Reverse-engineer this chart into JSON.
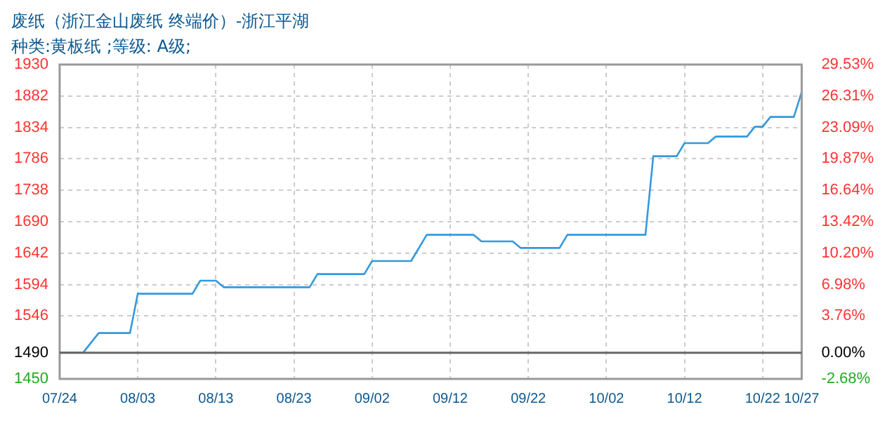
{
  "chart_data": {
    "type": "line",
    "title": "废纸（浙江金山废纸 终端价）-浙江平湖",
    "subtitle": "种类:黄板纸 ;等级: A级;",
    "x": [
      "--07-24",
      "--07-27",
      "--07-29",
      "--08-02",
      "--08-03",
      "--08-10",
      "--08-11",
      "--08-13",
      "--08-14",
      "--08-25",
      "--08-26",
      "--09-01",
      "--09-02",
      "--09-07",
      "--09-09",
      "--09-15",
      "--09-16",
      "--09-20",
      "--09-21",
      "--09-26",
      "--09-27",
      "--10-07",
      "--10-08",
      "--10-11",
      "--10-12",
      "--10-15",
      "--10-16",
      "--10-20",
      "--10-21",
      "--10-22",
      "--10-23",
      "--10-26",
      "--10-27"
    ],
    "series": [
      {
        "color": "#3399dd",
        "values": [
          1490,
          1490,
          1520,
          1520,
          1580,
          1580,
          1600,
          1600,
          1590,
          1590,
          1610,
          1610,
          1630,
          1630,
          1670,
          1670,
          1660,
          1660,
          1650,
          1650,
          1670,
          1670,
          1790,
          1790,
          1810,
          1810,
          1820,
          1820,
          1835,
          1835,
          1850,
          1850,
          1888
        ]
      }
    ],
    "xlim": [
      "--07-24",
      "--10-27"
    ],
    "xticks": [
      {
        "value": "--07-24",
        "label": "07/24"
      },
      {
        "value": "--08-03",
        "label": "08/03"
      },
      {
        "value": "--08-13",
        "label": "08/13"
      },
      {
        "value": "--08-23",
        "label": "08/23"
      },
      {
        "value": "--09-02",
        "label": "09/02"
      },
      {
        "value": "--09-12",
        "label": "09/12"
      },
      {
        "value": "--09-22",
        "label": "09/22"
      },
      {
        "value": "--10-02",
        "label": "10/02"
      },
      {
        "value": "--10-12",
        "label": "10/12"
      },
      {
        "value": "--10-22",
        "label": "10/22"
      },
      {
        "value": "--10-27",
        "label": "10/27"
      }
    ],
    "ylim": [
      1450,
      1930
    ],
    "yticks": [
      1450,
      1490,
      1546,
      1594,
      1642,
      1690,
      1738,
      1786,
      1834,
      1882,
      1930
    ],
    "y2lim": [
      -2.68,
      29.53
    ],
    "y2ticks": [
      {
        "value": -2.68,
        "label": "-2.68%"
      },
      {
        "value": 0,
        "label": "0.00%"
      },
      {
        "value": 3.76,
        "label": "3.76%"
      },
      {
        "value": 6.98,
        "label": "6.98%"
      },
      {
        "value": 10.2,
        "label": "10.20%"
      },
      {
        "value": 13.42,
        "label": "13.42%"
      },
      {
        "value": 16.64,
        "label": "16.64%"
      },
      {
        "value": 19.87,
        "label": "19.87%"
      },
      {
        "value": 23.09,
        "label": "23.09%"
      },
      {
        "value": 26.31,
        "label": "26.31%"
      },
      {
        "value": 29.53,
        "label": "29.53%"
      }
    ],
    "ref_lines": [
      {
        "axis": "y",
        "value": 1490,
        "color": "#666666"
      }
    ],
    "grid": true,
    "legend": false,
    "marker": "none",
    "line_style": "solid"
  }
}
